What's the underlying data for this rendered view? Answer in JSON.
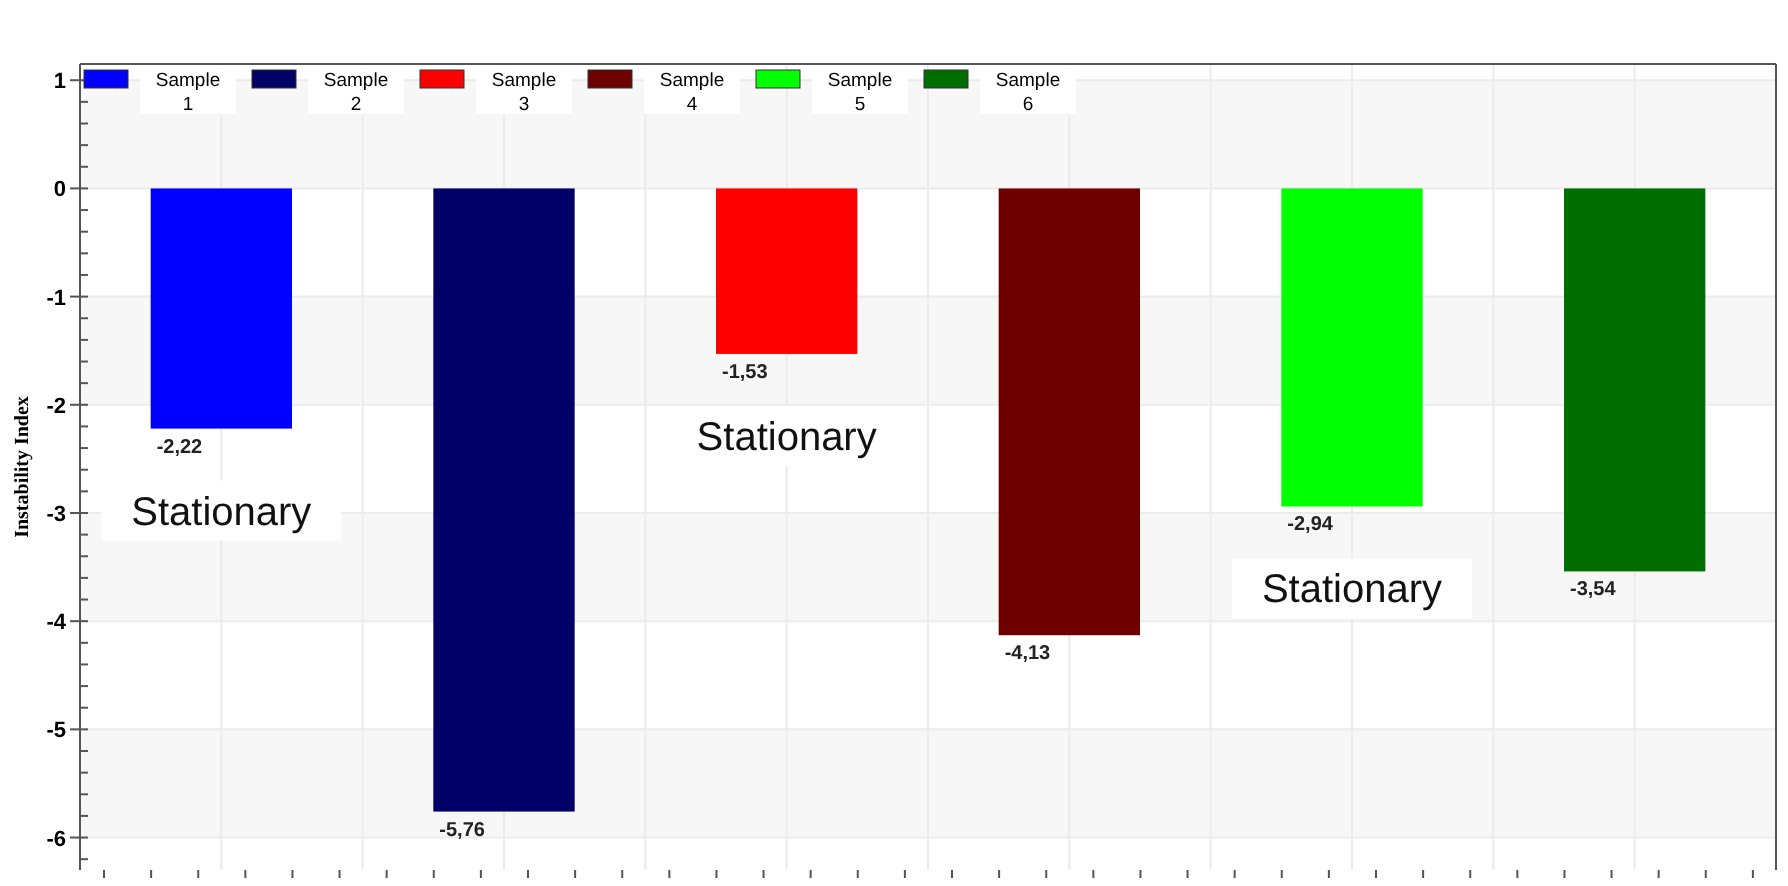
{
  "chart_data": {
    "type": "bar",
    "ylabel": "Instability Index",
    "categories": [
      null,
      null,
      null,
      null,
      null,
      null
    ],
    "series": [
      {
        "name": "Sample 1",
        "color": "#0000ff",
        "values": [
          -2.22,
          null,
          null,
          null,
          null,
          null
        ],
        "value_labels": [
          "-2,22",
          null,
          null,
          null,
          null,
          null
        ]
      },
      {
        "name": "Sample 2",
        "color": "#000066",
        "values": [
          null,
          -5.76,
          null,
          null,
          null,
          null
        ],
        "value_labels": [
          null,
          "-5,76",
          null,
          null,
          null,
          null
        ]
      },
      {
        "name": "Sample 3",
        "color": "#ff0000",
        "values": [
          null,
          null,
          -1.53,
          null,
          null,
          null
        ],
        "value_labels": [
          null,
          null,
          "-1,53",
          null,
          null,
          null
        ]
      },
      {
        "name": "Sample 4",
        "color": "#6e0000",
        "values": [
          null,
          null,
          null,
          -4.13,
          null,
          null
        ],
        "value_labels": [
          null,
          null,
          null,
          "-4,13",
          null,
          null
        ]
      },
      {
        "name": "Sample 5",
        "color": "#00ff00",
        "values": [
          null,
          null,
          null,
          null,
          -2.94,
          null
        ],
        "value_labels": [
          null,
          null,
          null,
          null,
          "-2,94",
          null
        ]
      },
      {
        "name": "Sample 6",
        "color": "#006e00",
        "values": [
          null,
          null,
          null,
          null,
          null,
          -3.54
        ],
        "value_labels": [
          null,
          null,
          null,
          null,
          null,
          "-3,54"
        ]
      }
    ],
    "annotations": [
      "Stationary",
      "Stationary",
      "Stationary"
    ],
    "ylim": [
      -6.3,
      1.15
    ],
    "yticks": [
      -6,
      -5,
      -4,
      -3,
      -2,
      -1,
      0,
      1
    ],
    "grid": true,
    "legend": "top left",
    "tick_labels": "y"
  }
}
